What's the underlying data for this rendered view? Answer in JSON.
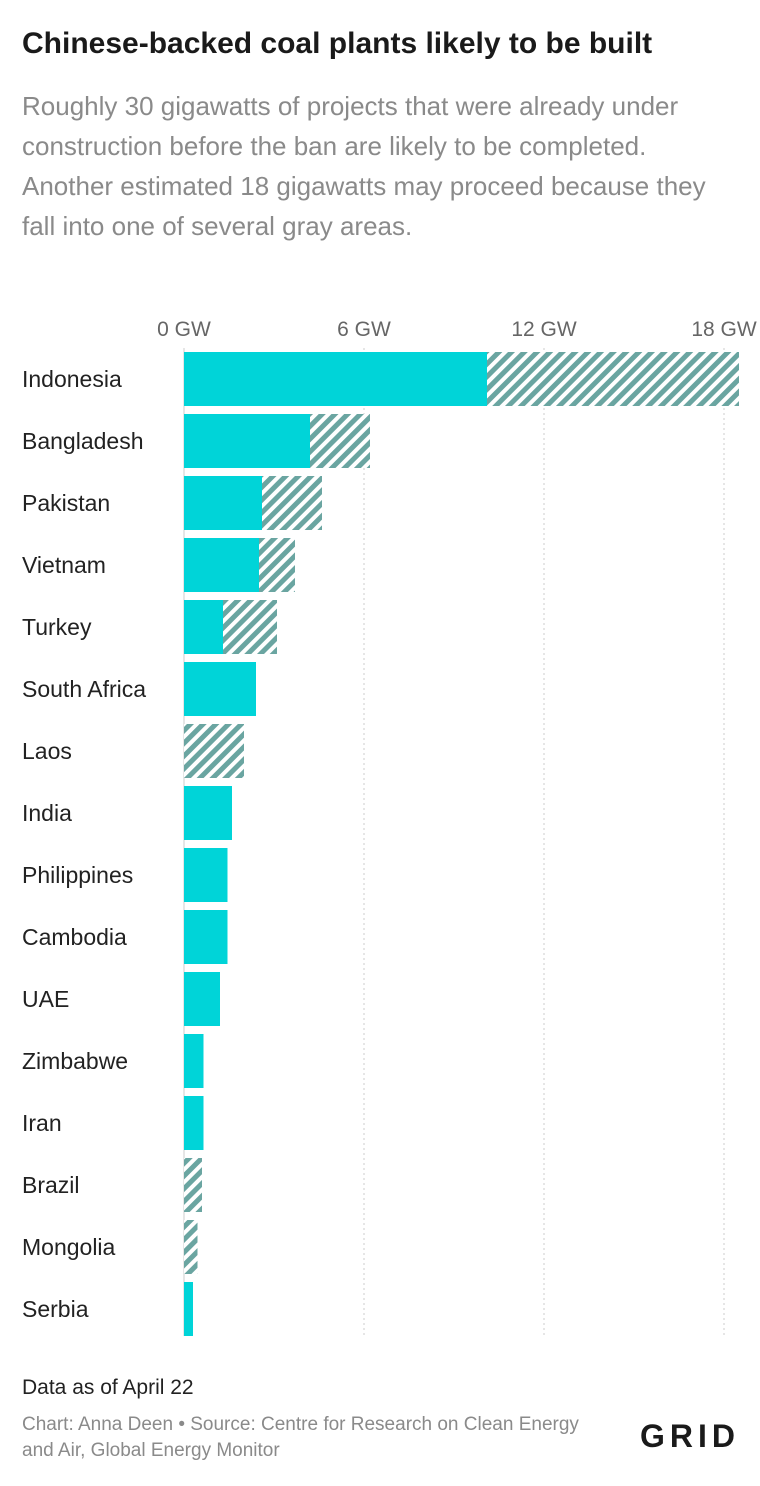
{
  "title": "Chinese-backed coal plants likely to be built",
  "subtitle": "Roughly 30 gigawatts of projects that were already under construction before the ban are likely to be completed. Another estimated 18 gigawatts may proceed because they fall into one of several gray areas.",
  "note": "Data as of April 22",
  "credit": "Chart: Anna Deen • Source: Centre for Research on Clean Energy and Air, Global Energy Monitor",
  "logo": "GRID",
  "colors": {
    "likely": "#00d4d8",
    "gray_area": "#6aa5a1",
    "grid": "#cccccc"
  },
  "chart_data": {
    "type": "bar",
    "orientation": "horizontal",
    "stacked": true,
    "unit": "GW",
    "xlim": [
      0,
      18.5
    ],
    "xticks": [
      0,
      6,
      12,
      18
    ],
    "xtick_labels": [
      "0 GW",
      "6 GW",
      "12 GW",
      "18 GW"
    ],
    "categories": [
      "Indonesia",
      "Bangladesh",
      "Pakistan",
      "Vietnam",
      "Turkey",
      "South Africa",
      "Laos",
      "India",
      "Philippines",
      "Cambodia",
      "UAE",
      "Zimbabwe",
      "Iran",
      "Brazil",
      "Mongolia",
      "Serbia"
    ],
    "series": [
      {
        "style": "solid",
        "values": [
          10.1,
          4.2,
          2.6,
          2.5,
          1.3,
          2.4,
          0,
          1.6,
          1.45,
          1.45,
          1.2,
          0.65,
          0.65,
          0,
          0,
          0.3
        ]
      },
      {
        "style": "hatched",
        "values": [
          8.4,
          2.0,
          2.0,
          1.2,
          1.8,
          0,
          2.0,
          0,
          0,
          0,
          0,
          0,
          0,
          0.6,
          0.45,
          0
        ]
      }
    ],
    "grid": true,
    "legend": "none"
  }
}
